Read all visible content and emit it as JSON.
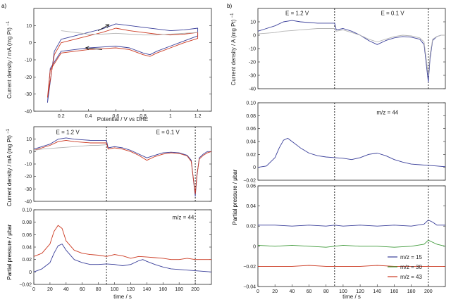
{
  "figure": {
    "left_label": "a)",
    "right_label": "b)"
  },
  "colors": {
    "blue": "#3a3f9a",
    "red": "#cc3a22",
    "gray": "#b4b4b4",
    "green": "#3f9a3a",
    "frame": "#222222"
  },
  "chart_data": [
    {
      "id": "a1",
      "type": "line",
      "title": "",
      "xlabel": "Potential / V vs DHE",
      "ylabel": "Current density / mA (mg Pt)",
      "ylabel_sup": "−1",
      "xlim": [
        0,
        1.3
      ],
      "ylim": [
        -40,
        20
      ],
      "xticks": [
        0.2,
        0.4,
        0.6,
        0.8,
        1.0,
        1.2
      ],
      "xtick_labels": [
        "0.2",
        "0.4",
        "0.6",
        "0.8",
        "1",
        "1.2"
      ],
      "yticks": [
        -40,
        -30,
        -20,
        -10,
        0,
        10
      ],
      "series": [
        {
          "name": "blue",
          "color": "blue",
          "x": [
            0.1,
            0.15,
            0.2,
            0.3,
            0.4,
            0.5,
            0.6,
            0.7,
            0.8,
            0.9,
            1.0,
            1.1,
            1.2,
            1.2,
            1.1,
            1.0,
            0.9,
            0.85,
            0.8,
            0.7,
            0.6,
            0.5,
            0.4,
            0.3,
            0.2,
            0.12,
            0.1
          ],
          "y": [
            -35,
            -5,
            2,
            4,
            6,
            8,
            11,
            10,
            9,
            8,
            7,
            7.5,
            8.5,
            4,
            1,
            -2,
            -5,
            -7,
            -6,
            -3,
            -2,
            -2.5,
            -3,
            -4,
            -5,
            -15,
            -35
          ]
        },
        {
          "name": "red",
          "color": "red",
          "x": [
            0.1,
            0.15,
            0.2,
            0.3,
            0.4,
            0.5,
            0.6,
            0.7,
            0.8,
            0.9,
            1.0,
            1.1,
            1.2,
            1.2,
            1.1,
            1.0,
            0.9,
            0.85,
            0.8,
            0.7,
            0.6,
            0.5,
            0.4,
            0.3,
            0.2,
            0.12,
            0.1
          ],
          "y": [
            -32,
            -7,
            0,
            2,
            4,
            6,
            8.5,
            7,
            6,
            5,
            4.5,
            5,
            6,
            2.5,
            0,
            -3,
            -6,
            -8,
            -7,
            -4,
            -3,
            -3.5,
            -4,
            -5,
            -6,
            -16,
            -32
          ]
        },
        {
          "name": "gray",
          "color": "gray",
          "x": [
            0.2,
            0.3,
            0.4,
            0.5,
            0.6,
            0.7,
            0.8,
            0.9,
            1.0,
            1.1,
            1.2
          ],
          "y": [
            7,
            6,
            5,
            5,
            5.5,
            5,
            4.5,
            4.5,
            5,
            5.5,
            6
          ]
        }
      ],
      "annotations": [
        {
          "type": "arrow",
          "x1": 0.47,
          "y1": 7,
          "x2": 0.55,
          "y2": 10.5
        },
        {
          "type": "arrow",
          "x1": 0.5,
          "y1": -4,
          "x2": 0.38,
          "y2": -3
        }
      ]
    },
    {
      "id": "a2",
      "type": "line",
      "xlabel": "",
      "ylabel": "",
      "xlim": [
        0,
        220
      ],
      "ylim": [
        -40,
        20
      ],
      "xticks": [],
      "xtick_labels": [],
      "yticks": [
        -40,
        -30,
        -20,
        -10,
        0,
        10
      ],
      "vlines": [
        90,
        200
      ],
      "annotations": [
        {
          "type": "text",
          "x": 42,
          "y": 14,
          "text": "E = 1.2 V"
        },
        {
          "type": "text",
          "x": 166,
          "y": 14,
          "text": "E = 0.1 V"
        }
      ],
      "series": [
        {
          "name": "blue",
          "color": "blue",
          "x": [
            0,
            10,
            20,
            30,
            40,
            50,
            60,
            70,
            80,
            90,
            92,
            100,
            110,
            120,
            130,
            140,
            150,
            160,
            170,
            180,
            190,
            195,
            200,
            202,
            205,
            210,
            215,
            220
          ],
          "y": [
            2,
            4,
            6,
            10,
            11,
            10,
            9.5,
            9,
            9,
            9,
            3,
            4,
            3,
            1,
            -2,
            -5,
            -3,
            -1,
            -0.5,
            -1,
            -3,
            -7,
            -36,
            -20,
            -5,
            -2,
            0,
            0
          ]
        },
        {
          "name": "red",
          "color": "red",
          "x": [
            0,
            10,
            20,
            30,
            40,
            50,
            60,
            70,
            80,
            90,
            92,
            100,
            110,
            120,
            130,
            140,
            150,
            160,
            170,
            180,
            190,
            195,
            200,
            202,
            205,
            210,
            215,
            220
          ],
          "y": [
            1,
            3,
            5,
            8,
            9,
            8,
            7.5,
            7,
            7,
            7,
            2,
            3,
            2,
            0,
            -3,
            -7,
            -4,
            -2,
            -1,
            -1.5,
            -3.5,
            -8,
            -34,
            -19,
            -6,
            -3,
            -1,
            0
          ]
        },
        {
          "name": "gray",
          "color": "gray",
          "x": [
            0,
            10,
            20,
            30,
            40,
            50,
            60,
            70,
            80,
            90
          ],
          "y": [
            1,
            2,
            2.5,
            3,
            3.5,
            4,
            4.5,
            5,
            5,
            5.5
          ]
        }
      ]
    },
    {
      "id": "a3",
      "type": "line",
      "xlabel": "time / s",
      "ylabel": "Partial pressure / μbar",
      "xlim": [
        0,
        220
      ],
      "ylim": [
        -0.02,
        0.1
      ],
      "xticks": [
        0,
        20,
        40,
        60,
        80,
        100,
        120,
        140,
        160,
        180,
        200
      ],
      "xtick_labels": [
        "0",
        "20",
        "40",
        "60",
        "80",
        "100",
        "120",
        "140",
        "160",
        "180",
        "200"
      ],
      "yticks": [
        -0.02,
        0,
        0.02,
        0.04,
        0.06,
        0.08,
        0.1
      ],
      "ytick_labels": [
        "−0.02",
        "0",
        "0.02",
        "0.04",
        "0.06",
        "0.08",
        "0.10"
      ],
      "vlines": [
        90,
        200
      ],
      "annotations": [
        {
          "type": "text",
          "x": 185,
          "y": 0.085,
          "text": "m/z = 44"
        }
      ],
      "series": [
        {
          "name": "red",
          "color": "red",
          "x": [
            0,
            10,
            20,
            25,
            30,
            35,
            40,
            50,
            60,
            70,
            80,
            90,
            100,
            110,
            120,
            130,
            140,
            150,
            160,
            170,
            180,
            190,
            200,
            210,
            220
          ],
          "y": [
            0.025,
            0.03,
            0.045,
            0.065,
            0.075,
            0.07,
            0.05,
            0.035,
            0.03,
            0.028,
            0.027,
            0.025,
            0.028,
            0.026,
            0.022,
            0.025,
            0.024,
            0.023,
            0.022,
            0.02,
            0.02,
            0.022,
            0.02,
            0.02,
            0.02
          ]
        },
        {
          "name": "blue",
          "color": "blue",
          "x": [
            0,
            10,
            20,
            25,
            30,
            35,
            40,
            50,
            60,
            70,
            80,
            90,
            100,
            110,
            120,
            130,
            135,
            140,
            150,
            160,
            170,
            180,
            190,
            200,
            210,
            220
          ],
          "y": [
            0.0,
            0.005,
            0.015,
            0.03,
            0.042,
            0.045,
            0.035,
            0.02,
            0.015,
            0.012,
            0.012,
            0.013,
            0.012,
            0.01,
            0.012,
            0.018,
            0.02,
            0.017,
            0.012,
            0.008,
            0.005,
            0.004,
            0.003,
            0.002,
            0.001,
            0.0
          ]
        }
      ]
    },
    {
      "id": "b1",
      "type": "line",
      "xlabel": "",
      "ylabel": "Current density / A (mg Pt)",
      "ylabel_sup": "−1",
      "xlim": [
        0,
        220
      ],
      "ylim": [
        -40,
        20
      ],
      "xticks": [],
      "xtick_labels": [],
      "yticks": [
        -40,
        -30,
        -20,
        -10,
        0,
        10
      ],
      "vlines": [
        90,
        200
      ],
      "annotations": [
        {
          "type": "text",
          "x": 46,
          "y": 15,
          "text": "E = 1.2 V"
        },
        {
          "type": "text",
          "x": 158,
          "y": 15,
          "text": "E = 0.1 V"
        }
      ],
      "series": [
        {
          "name": "blue",
          "color": "blue",
          "x": [
            0,
            10,
            20,
            30,
            40,
            50,
            60,
            70,
            80,
            90,
            92,
            100,
            110,
            120,
            130,
            140,
            150,
            160,
            170,
            180,
            190,
            195,
            200,
            202,
            205,
            210,
            215,
            220
          ],
          "y": [
            3,
            5,
            7,
            10,
            11,
            10,
            9.5,
            9,
            9,
            9,
            4,
            5,
            3,
            0,
            -4,
            -7,
            -4,
            -2,
            -1,
            -1.5,
            -3,
            -7,
            -35,
            -18,
            -4,
            -1,
            0,
            0
          ]
        },
        {
          "name": "gray",
          "color": "gray",
          "x": [
            0,
            10,
            20,
            30,
            40,
            50,
            60,
            70,
            80,
            90,
            92,
            100,
            110,
            120,
            130,
            140,
            150,
            160,
            170,
            180,
            190,
            195,
            200,
            202,
            205,
            210,
            215,
            220
          ],
          "y": [
            1,
            1.5,
            2,
            3,
            3.5,
            4,
            4.5,
            5,
            5,
            5,
            3,
            4,
            2,
            0,
            -3,
            -5,
            -3,
            -1,
            0,
            -0.5,
            -2,
            -5,
            -30,
            -15,
            -3,
            -1,
            0,
            0
          ]
        }
      ]
    },
    {
      "id": "b2",
      "type": "line",
      "xlabel": "",
      "ylabel": "Partial pressure / μbar",
      "xlim": [
        0,
        220
      ],
      "ylim": [
        -0.02,
        0.1
      ],
      "xticks": [],
      "xtick_labels": [],
      "yticks": [
        -0.02,
        0,
        0.02,
        0.04,
        0.06,
        0.08,
        0.1
      ],
      "ytick_labels": [
        "−0.02",
        "0",
        "0.02",
        "0.04",
        "0.06",
        "0.08",
        "0.10"
      ],
      "vlines": [
        90,
        200
      ],
      "annotations": [
        {
          "type": "text",
          "x": 152,
          "y": 0.082,
          "text": "m/z = 44"
        }
      ],
      "series": [
        {
          "name": "blue",
          "color": "blue",
          "x": [
            0,
            10,
            20,
            25,
            30,
            35,
            40,
            50,
            60,
            70,
            80,
            90,
            100,
            110,
            120,
            130,
            140,
            150,
            160,
            170,
            180,
            190,
            200,
            210,
            220
          ],
          "y": [
            0.0,
            0.002,
            0.015,
            0.03,
            0.042,
            0.045,
            0.04,
            0.03,
            0.022,
            0.018,
            0.016,
            0.015,
            0.014,
            0.012,
            0.015,
            0.02,
            0.022,
            0.018,
            0.012,
            0.008,
            0.005,
            0.004,
            0.003,
            0.002,
            0.001
          ]
        }
      ]
    },
    {
      "id": "b3",
      "type": "line",
      "xlabel": "time / s",
      "ylabel": "",
      "xlim": [
        0,
        220
      ],
      "ylim": [
        -0.04,
        0.06
      ],
      "xticks": [
        0,
        20,
        40,
        60,
        80,
        100,
        120,
        140,
        160,
        180,
        200
      ],
      "xtick_labels": [
        "0",
        "20",
        "40",
        "60",
        "80",
        "100",
        "120",
        "140",
        "160",
        "180",
        "200"
      ],
      "yticks": [
        -0.04,
        -0.02,
        0,
        0.02,
        0.04,
        0.06
      ],
      "ytick_labels": [
        "−0.04",
        "−0.02",
        "0",
        "0.02",
        "0.04",
        "0.06"
      ],
      "vlines": [
        90,
        200
      ],
      "legend": [
        {
          "label": "m/z = 15",
          "color": "blue"
        },
        {
          "label": "m/z = 30",
          "color": "green"
        },
        {
          "label": "m/z = 43",
          "color": "red"
        }
      ],
      "series": [
        {
          "name": "m/z = 15",
          "color": "blue",
          "x": [
            0,
            20,
            40,
            60,
            80,
            90,
            100,
            120,
            140,
            160,
            180,
            195,
            200,
            205,
            210,
            220
          ],
          "y": [
            0.021,
            0.021,
            0.02,
            0.021,
            0.02,
            0.021,
            0.02,
            0.021,
            0.02,
            0.021,
            0.02,
            0.022,
            0.026,
            0.024,
            0.021,
            0.021
          ]
        },
        {
          "name": "m/z = 30",
          "color": "green",
          "x": [
            0,
            20,
            40,
            60,
            80,
            90,
            100,
            120,
            140,
            160,
            180,
            195,
            200,
            205,
            210,
            220
          ],
          "y": [
            0.001,
            0.0,
            0.001,
            0.0,
            -0.001,
            0.0,
            0.001,
            0.0,
            0.0,
            -0.001,
            0.0,
            0.002,
            0.006,
            0.004,
            0.002,
            0.0
          ]
        },
        {
          "name": "m/z = 43",
          "color": "red",
          "x": [
            0,
            20,
            40,
            60,
            80,
            90,
            100,
            120,
            140,
            160,
            180,
            200,
            210,
            220
          ],
          "y": [
            -0.02,
            -0.02,
            -0.02,
            -0.019,
            -0.02,
            -0.02,
            -0.02,
            -0.02,
            -0.019,
            -0.02,
            -0.02,
            -0.02,
            -0.02,
            -0.02
          ]
        }
      ]
    }
  ]
}
